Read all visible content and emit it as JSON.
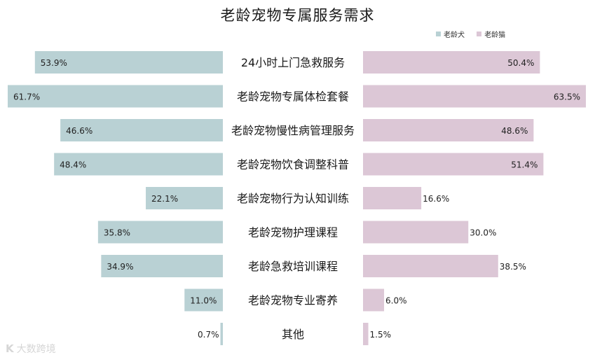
{
  "chart_data": {
    "type": "bar",
    "title": "老龄宠物专属服务需求",
    "categories": [
      "24小时上门急救服务",
      "老龄宠物专属体检套餐",
      "老龄宠物慢性病管理服务",
      "老龄宠物饮食调整科普",
      "老龄宠物行为认知训练",
      "老龄宠物护理课程",
      "老龄急救培训课程",
      "老龄宠物专业寄养",
      "其他"
    ],
    "series": [
      {
        "name": "老龄犬",
        "color": "#b9d1d4",
        "values": [
          53.9,
          61.7,
          46.6,
          48.4,
          22.1,
          35.8,
          34.9,
          11.0,
          0.7
        ]
      },
      {
        "name": "老龄猫",
        "color": "#dcc7d6",
        "values": [
          50.4,
          63.5,
          48.6,
          51.4,
          16.6,
          30.0,
          38.5,
          6.0,
          1.5
        ]
      }
    ],
    "unit": "%",
    "legend_position": "top-right"
  },
  "watermark": {
    "mark": "K",
    "text": "大数跨境"
  }
}
